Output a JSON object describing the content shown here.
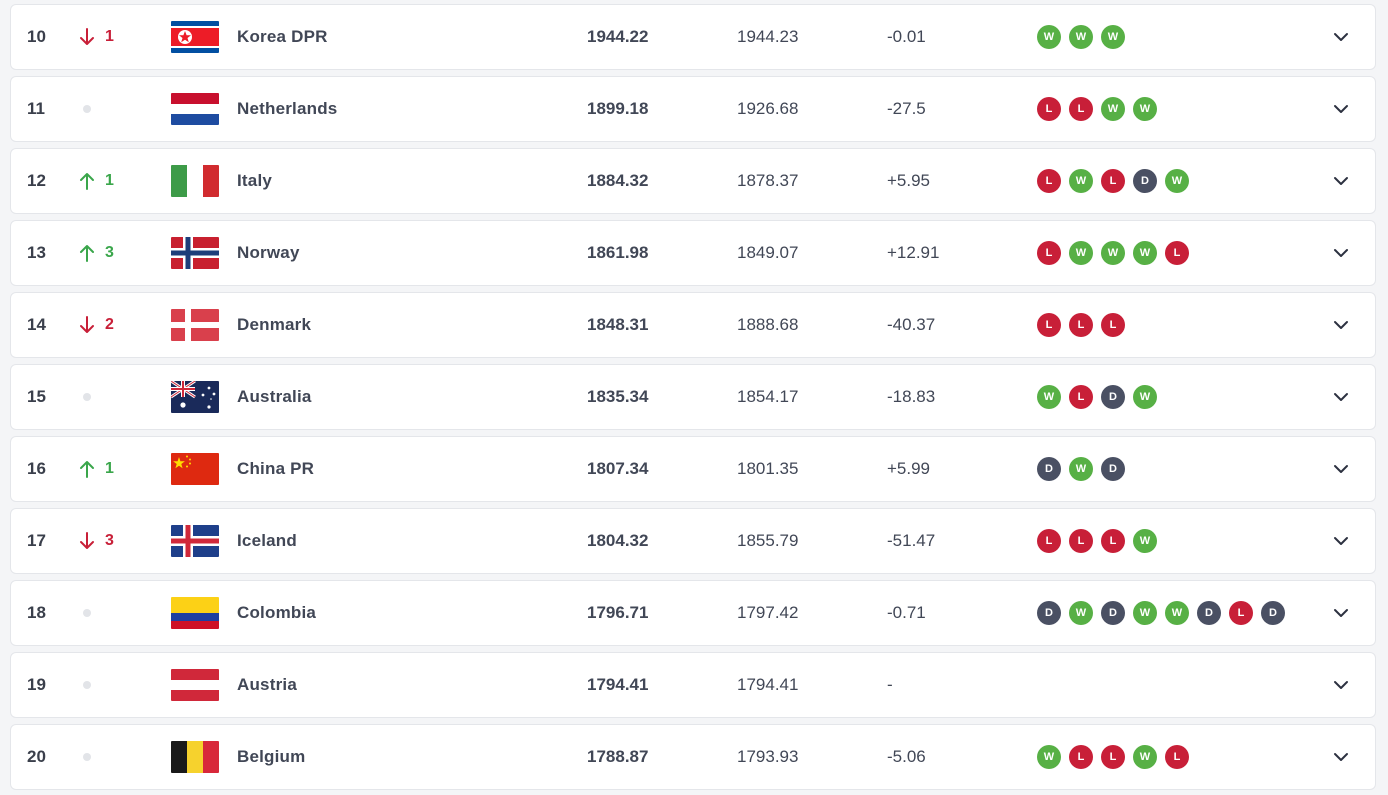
{
  "colors": {
    "win": "#57b045",
    "loss": "#c81f38",
    "draw": "#4a5063",
    "up": "#3aa64b",
    "down": "#c81f38"
  },
  "rows": [
    {
      "rank": "10",
      "movement": "down",
      "movement_value": "1",
      "flag": "korea-dpr",
      "team": "Korea DPR",
      "points": "1944.22",
      "previous_points": "1944.23",
      "change": "-0.01",
      "form": [
        "W",
        "W",
        "W"
      ]
    },
    {
      "rank": "11",
      "movement": "none",
      "movement_value": "",
      "flag": "netherlands",
      "team": "Netherlands",
      "points": "1899.18",
      "previous_points": "1926.68",
      "change": "-27.5",
      "form": [
        "L",
        "L",
        "W",
        "W"
      ]
    },
    {
      "rank": "12",
      "movement": "up",
      "movement_value": "1",
      "flag": "italy",
      "team": "Italy",
      "points": "1884.32",
      "previous_points": "1878.37",
      "change": "+5.95",
      "form": [
        "L",
        "W",
        "L",
        "D",
        "W"
      ]
    },
    {
      "rank": "13",
      "movement": "up",
      "movement_value": "3",
      "flag": "norway",
      "team": "Norway",
      "points": "1861.98",
      "previous_points": "1849.07",
      "change": "+12.91",
      "form": [
        "L",
        "W",
        "W",
        "W",
        "L"
      ]
    },
    {
      "rank": "14",
      "movement": "down",
      "movement_value": "2",
      "flag": "denmark",
      "team": "Denmark",
      "points": "1848.31",
      "previous_points": "1888.68",
      "change": "-40.37",
      "form": [
        "L",
        "L",
        "L"
      ]
    },
    {
      "rank": "15",
      "movement": "none",
      "movement_value": "",
      "flag": "australia",
      "team": "Australia",
      "points": "1835.34",
      "previous_points": "1854.17",
      "change": "-18.83",
      "form": [
        "W",
        "L",
        "D",
        "W"
      ]
    },
    {
      "rank": "16",
      "movement": "up",
      "movement_value": "1",
      "flag": "china",
      "team": "China PR",
      "points": "1807.34",
      "previous_points": "1801.35",
      "change": "+5.99",
      "form": [
        "D",
        "W",
        "D"
      ]
    },
    {
      "rank": "17",
      "movement": "down",
      "movement_value": "3",
      "flag": "iceland",
      "team": "Iceland",
      "points": "1804.32",
      "previous_points": "1855.79",
      "change": "-51.47",
      "form": [
        "L",
        "L",
        "L",
        "W"
      ]
    },
    {
      "rank": "18",
      "movement": "none",
      "movement_value": "",
      "flag": "colombia",
      "team": "Colombia",
      "points": "1796.71",
      "previous_points": "1797.42",
      "change": "-0.71",
      "form": [
        "D",
        "W",
        "D",
        "W",
        "W",
        "D",
        "L",
        "D"
      ]
    },
    {
      "rank": "19",
      "movement": "none",
      "movement_value": "",
      "flag": "austria",
      "team": "Austria",
      "points": "1794.41",
      "previous_points": "1794.41",
      "change": "-",
      "form": []
    },
    {
      "rank": "20",
      "movement": "none",
      "movement_value": "",
      "flag": "belgium",
      "team": "Belgium",
      "points": "1788.87",
      "previous_points": "1793.93",
      "change": "-5.06",
      "form": [
        "W",
        "L",
        "L",
        "W",
        "L"
      ]
    }
  ]
}
